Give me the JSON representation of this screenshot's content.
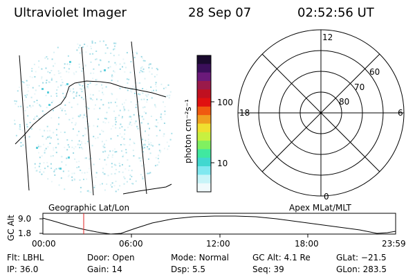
{
  "header": {
    "instrument": "Ultraviolet Imager",
    "date": "28 Sep 07",
    "time": "02:52:56 UT"
  },
  "colorbar": {
    "unit_label": "photon cm⁻²s⁻¹",
    "ticks": [
      "100",
      "10"
    ],
    "colors": [
      "#1a0a2e",
      "#3b0f5a",
      "#6b1a7a",
      "#9a1a4a",
      "#c01020",
      "#e01010",
      "#f05a10",
      "#f0a020",
      "#f0e030",
      "#c8f040",
      "#80f060",
      "#40e8a0",
      "#40d8d0",
      "#80e8f0",
      "#c8f4f8",
      "#f0fafc"
    ]
  },
  "polar": {
    "mlt_labels": {
      "top": "12",
      "bottom": "0",
      "left": "18",
      "right": "6"
    },
    "lat_labels": [
      "60",
      "70",
      "80"
    ]
  },
  "timeline": {
    "left_label": "Geographic Lat/Lon",
    "right_label": "Apex MLat/MLT",
    "axis_title": "GC Alt",
    "axis_ticks": [
      "9.0",
      "1.8"
    ],
    "time_ticks": [
      "00:00",
      "06:00",
      "12:00",
      "18:00",
      "23:59"
    ]
  },
  "info": {
    "row1": [
      {
        "label": "Flt:",
        "value": "LBHL"
      },
      {
        "label": "Door:",
        "value": "Open"
      },
      {
        "label": "Mode:",
        "value": "Normal"
      },
      {
        "label": "GC Alt:",
        "value": "4.1 Re"
      },
      {
        "label": "GLat:",
        "value": "−21.5"
      }
    ],
    "row2": [
      {
        "label": "IP:",
        "value": "36.0"
      },
      {
        "label": "Gain:",
        "value": "14"
      },
      {
        "label": "Dsp:",
        "value": "5.5"
      },
      {
        "label": "Seq:",
        "value": "39"
      },
      {
        "label": "GLon:",
        "value": "283.5"
      }
    ]
  }
}
